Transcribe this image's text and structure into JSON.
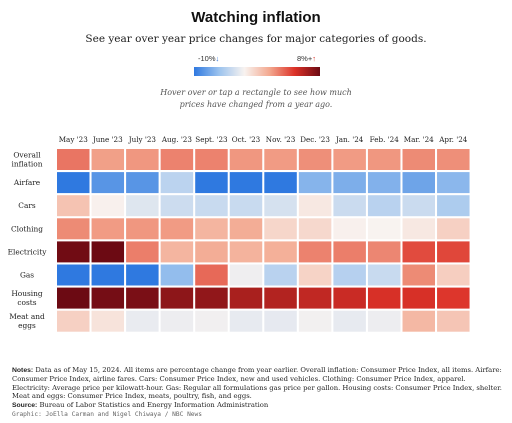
{
  "header": {
    "title": "Watching inflation",
    "subtitle": "See year over year price changes for major categories of goods."
  },
  "legend": {
    "min_label": "-10%",
    "min_arrow": "↓",
    "max_label": "8%+",
    "max_arrow": "↑"
  },
  "hint": {
    "line1": "Hover over or tap a rectangle to see how much",
    "line2": "prices have changed from a year ago."
  },
  "notes": {
    "label": "Notes:",
    "text": "Data as of May 15, 2024. All items are percentage change from year earlier. Overall inflation: Consumer Price Index, all items. Airfare: Consumer Price Index, airline fares. Cars: Consumer Price Index, new and used vehicles. Clothing: Consumer Price Index, apparel. Electricity: Average price per kilowatt-hour. Gas: Regular all formulations gas price per gallon. Housing costs: Consumer Price Index, shelter. Meat and eggs: Consumer Price Index, meats, poultry, fish, and eggs."
  },
  "source": {
    "label": "Source:",
    "text": "Bureau of Labor Statistics and Energy Information Administration"
  },
  "credit": "Graphic: JoElla Carman and Nigel Chiwaya / NBC News",
  "chart_data": {
    "type": "heatmap",
    "x": [
      "May '23",
      "June '23",
      "July '23",
      "Aug. '23",
      "Sept. '23",
      "Oct. '23",
      "Nov. '23",
      "Dec. '23",
      "Jan. '24",
      "Feb. '24",
      "Mar. '24",
      "Apr. '24"
    ],
    "y": [
      [
        "Overall",
        "inflation"
      ],
      [
        "Airfare"
      ],
      [
        "Cars"
      ],
      [
        "Clothing"
      ],
      [
        "Electricity"
      ],
      [
        "Gas"
      ],
      [
        "Housing",
        "costs"
      ],
      [
        "Meat and",
        "eggs"
      ]
    ],
    "color_scale": {
      "min": -10,
      "max": 8,
      "min_color": "#2f79e0",
      "mid_color": "#f8f3f0",
      "max_color": "#6c0a13"
    },
    "values": [
      [
        4.0,
        3.0,
        3.2,
        3.7,
        3.7,
        3.2,
        3.1,
        3.4,
        3.1,
        3.2,
        3.5,
        3.4
      ],
      [
        -13.4,
        -8.1,
        -8.1,
        -3.3,
        -13.4,
        -13.2,
        -12.2,
        -6.0,
        -6.4,
        -6.2,
        -7.1,
        -5.8
      ],
      [
        1.8,
        0.1,
        -1.4,
        -2.4,
        -2.6,
        -2.6,
        -1.9,
        0.4,
        -2.5,
        -3.4,
        -2.5,
        -4.1
      ],
      [
        3.5,
        3.1,
        3.2,
        3.1,
        2.3,
        2.6,
        1.1,
        1.0,
        0.1,
        0.0,
        0.4,
        1.3
      ],
      [
        7.9,
        8.1,
        3.8,
        2.3,
        2.6,
        2.4,
        2.5,
        3.7,
        3.8,
        3.6,
        5.0,
        5.1
      ],
      [
        -18.5,
        -21.8,
        -16.6,
        -5.4,
        4.3,
        -0.5,
        -3.4,
        1.2,
        -3.6,
        -2.6,
        3.5,
        1.4
      ],
      [
        8.0,
        7.8,
        7.7,
        7.3,
        7.2,
        6.7,
        6.5,
        6.2,
        6.0,
        5.7,
        5.7,
        5.5
      ],
      [
        1.3,
        0.6,
        -0.8,
        -0.6,
        -0.4,
        -0.9,
        -1.0,
        -0.3,
        -0.9,
        -0.6,
        2.2,
        1.7
      ]
    ]
  }
}
